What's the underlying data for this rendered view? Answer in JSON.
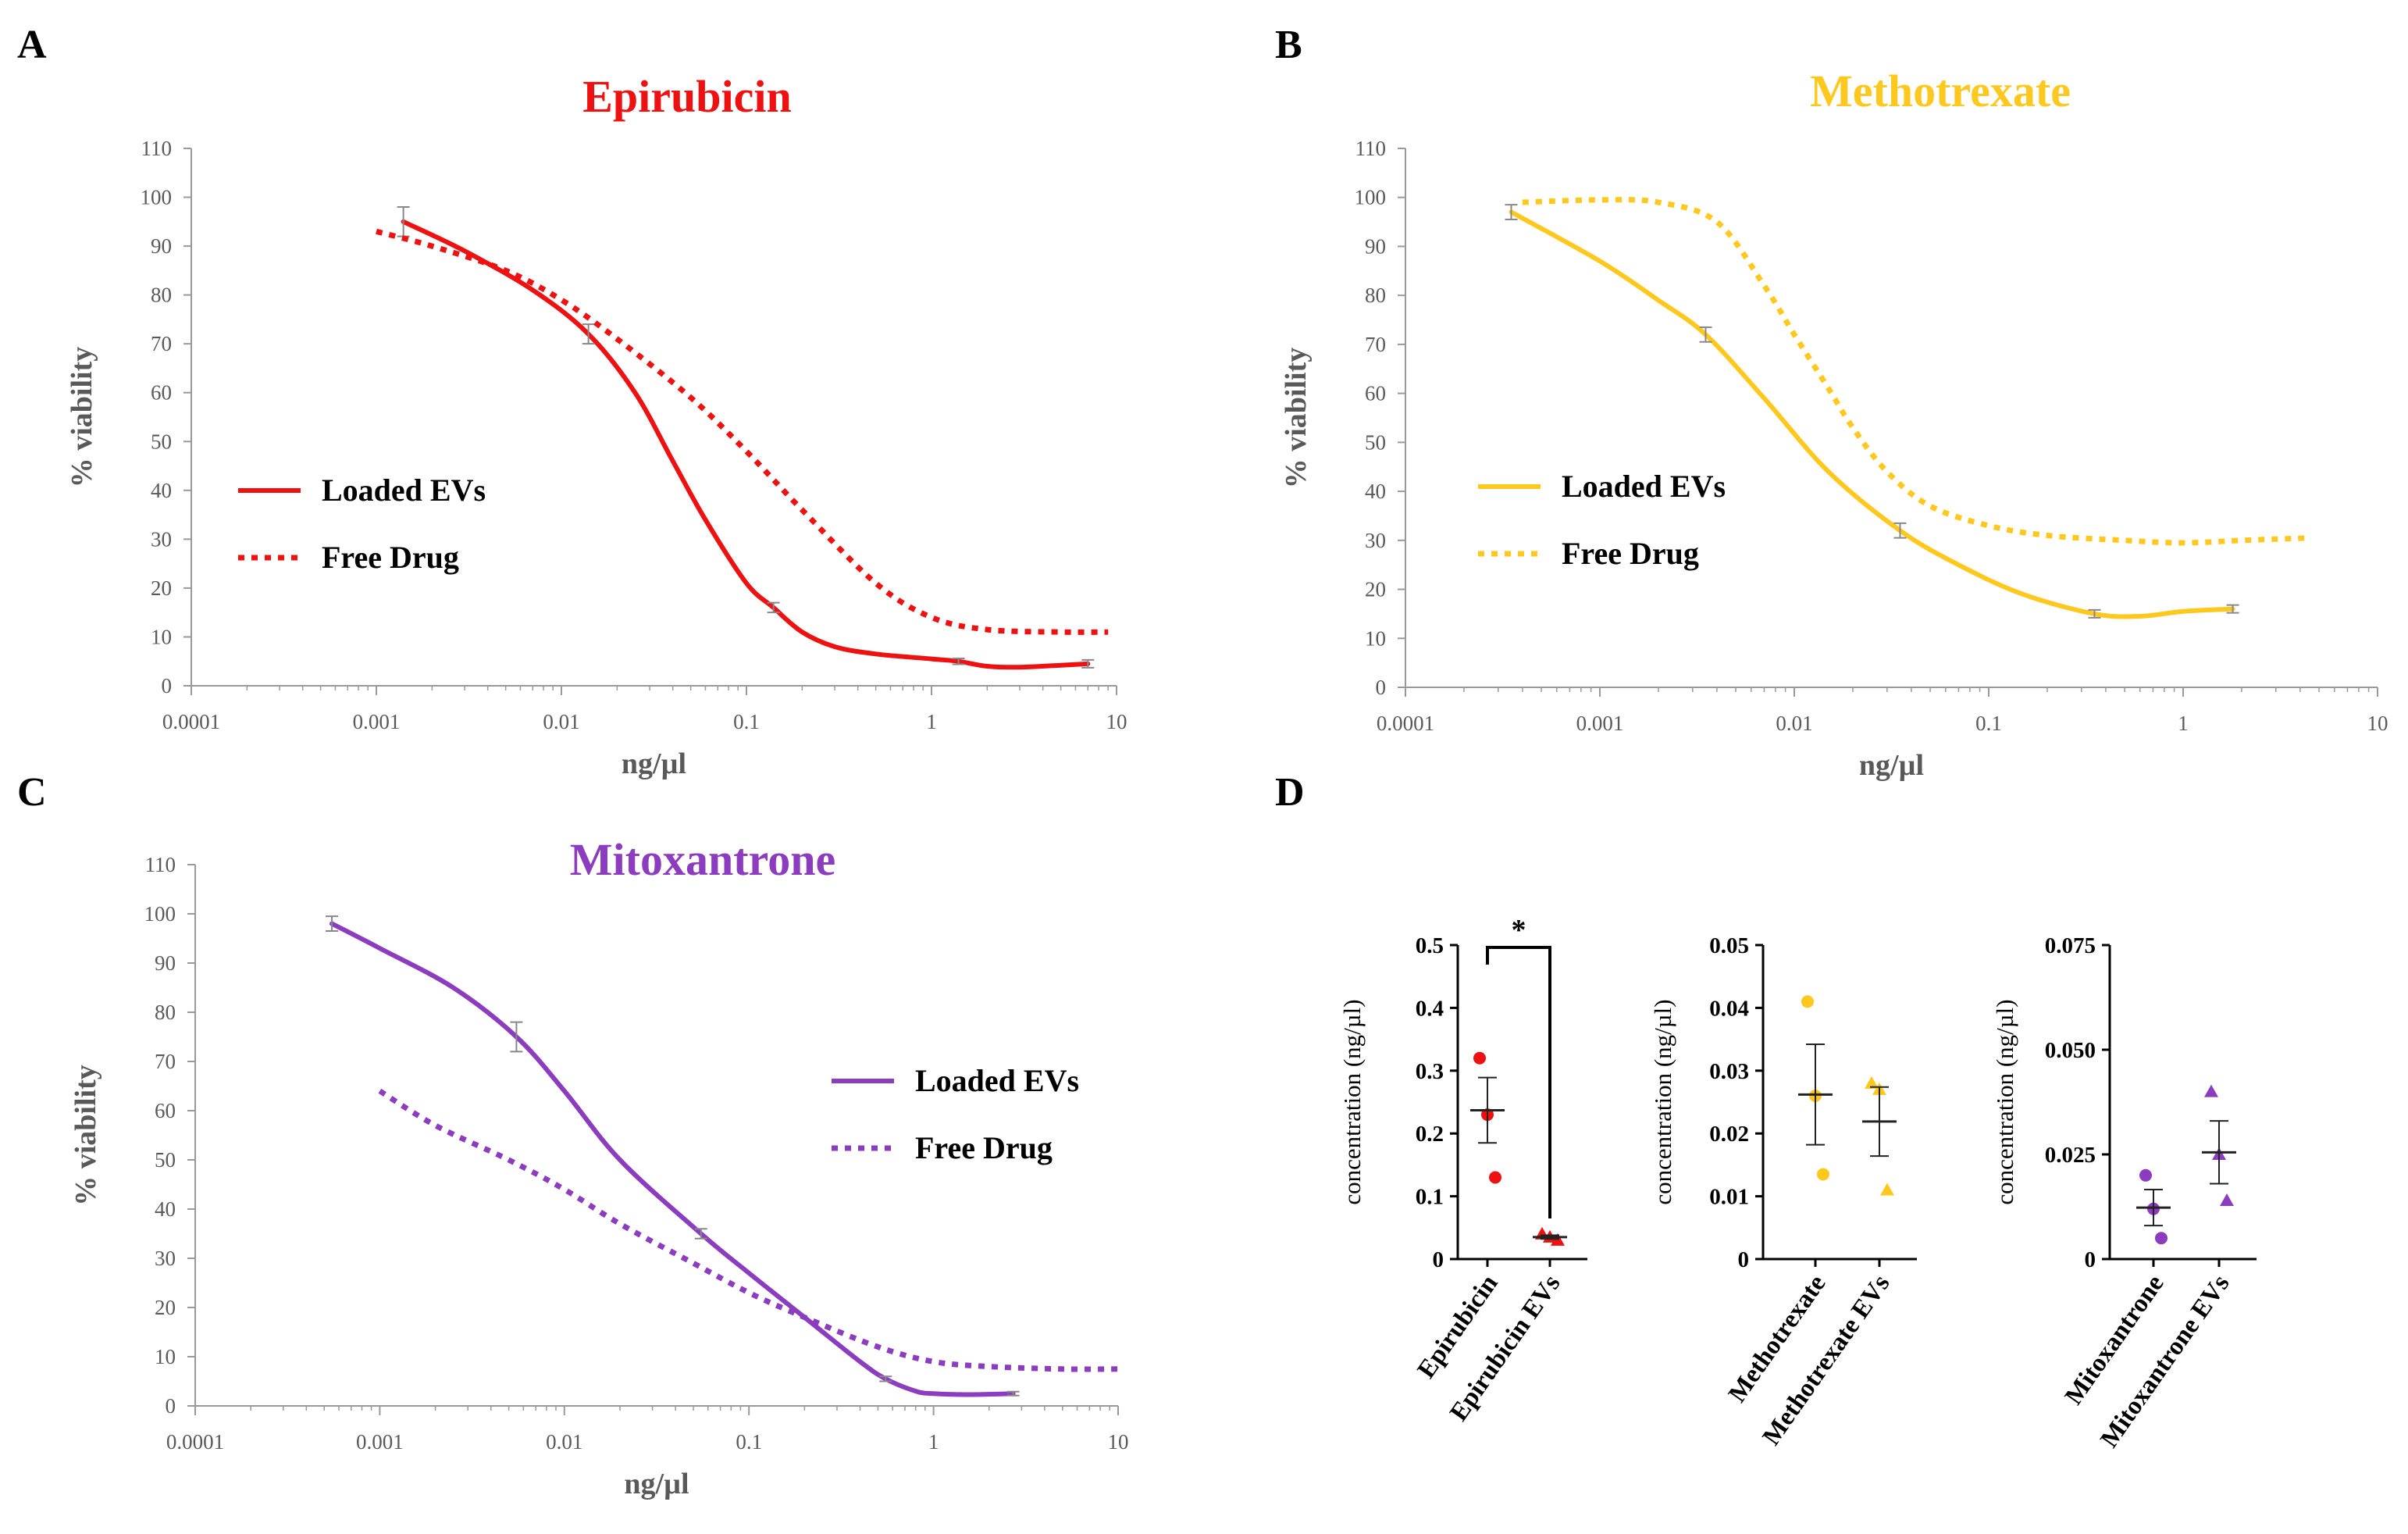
{
  "panels": {
    "A": {
      "letter": "A"
    },
    "B": {
      "letter": "B"
    },
    "C": {
      "letter": "C"
    },
    "D": {
      "letter": "D"
    }
  },
  "colors": {
    "epirubicin": "#ee1111",
    "methotrexate": "#ffc81e",
    "mitoxantrone": "#8c3cbe",
    "errorbar": "#888888",
    "axis": "#999999",
    "scatter_axis": "#000000"
  },
  "chart_data": [
    {
      "id": "A",
      "type": "line",
      "title": "Epirubicin",
      "xlabel": "ng/µl",
      "ylabel": "% viability",
      "xscale": "log",
      "xlim": [
        0.0001,
        10
      ],
      "ylim": [
        0,
        110
      ],
      "xticks": [
        "0.0001",
        "0.001",
        "0.01",
        "0.1",
        "1",
        "10"
      ],
      "yticks": [
        "0",
        "10",
        "20",
        "30",
        "40",
        "50",
        "60",
        "70",
        "80",
        "90",
        "100",
        "110"
      ],
      "color": "#ee1111",
      "legend_position": "center-left",
      "series": [
        {
          "name": "Loaded EVs",
          "style": "solid",
          "x": [
            0.0014,
            0.014,
            0.14,
            1.4,
            7
          ],
          "y": [
            95,
            72,
            16,
            5,
            4.5
          ],
          "err": [
            3,
            2,
            1,
            0.6,
            0.8
          ],
          "curve_x": [
            0.0014,
            0.003,
            0.007,
            0.014,
            0.025,
            0.04,
            0.06,
            0.1,
            0.14,
            0.2,
            0.3,
            0.5,
            1,
            1.4,
            2,
            3,
            5,
            7
          ],
          "curve_y": [
            95,
            89,
            81,
            72,
            60,
            46,
            34,
            21,
            16,
            11,
            8,
            6.5,
            5.5,
            5,
            4,
            3.8,
            4.2,
            4.5
          ]
        },
        {
          "name": "Free Drug",
          "style": "dotted",
          "x": [
            0.001,
            0.002,
            0.005,
            0.01,
            0.02,
            0.05,
            0.1,
            0.2,
            0.5,
            1,
            2,
            5,
            9
          ],
          "y": [
            93,
            90,
            85,
            79,
            71,
            59,
            48,
            36,
            21,
            14,
            11.5,
            11,
            11
          ]
        }
      ]
    },
    {
      "id": "B",
      "type": "line",
      "title": "Methotrexate",
      "xlabel": "ng/µl",
      "ylabel": "% viability",
      "xscale": "log",
      "xlim": [
        0.0001,
        10
      ],
      "ylim": [
        0,
        110
      ],
      "xticks": [
        "0.0001",
        "0.001",
        "0.01",
        "0.1",
        "1",
        "10"
      ],
      "yticks": [
        "0",
        "10",
        "20",
        "30",
        "40",
        "50",
        "60",
        "70",
        "80",
        "90",
        "100",
        "110"
      ],
      "color": "#ffc81e",
      "legend_position": "center-left",
      "series": [
        {
          "name": "Loaded EVs",
          "style": "solid",
          "x": [
            0.00035,
            0.0035,
            0.035,
            0.35,
            1.8
          ],
          "y": [
            97,
            72,
            32,
            15,
            16
          ],
          "err": [
            1.5,
            1.5,
            1.5,
            0.8,
            0.8
          ],
          "curve_x": [
            0.00035,
            0.001,
            0.002,
            0.0035,
            0.007,
            0.015,
            0.035,
            0.07,
            0.15,
            0.35,
            0.6,
            1,
            1.8
          ],
          "curve_y": [
            97,
            87,
            79,
            72,
            59,
            44,
            32,
            25,
            19,
            15,
            14.5,
            15.5,
            16
          ]
        },
        {
          "name": "Free Drug",
          "style": "dotted",
          "x": [
            0.0004,
            0.001,
            0.002,
            0.004,
            0.007,
            0.01,
            0.015,
            0.02,
            0.03,
            0.05,
            0.1,
            0.2,
            0.5,
            1,
            2,
            4.5
          ],
          "y": [
            99,
            99.5,
            99,
            95,
            82,
            72,
            61,
            53,
            44,
            37,
            33,
            31,
            30,
            29.5,
            30,
            30.5
          ]
        }
      ]
    },
    {
      "id": "C",
      "type": "line",
      "title": "Mitoxantrone",
      "xlabel": "ng/µl",
      "ylabel": "% viability",
      "xscale": "log",
      "xlim": [
        0.0001,
        10
      ],
      "ylim": [
        0,
        110
      ],
      "xticks": [
        "0.0001",
        "0.001",
        "0.01",
        "0.1",
        "1",
        "10"
      ],
      "yticks": [
        "0",
        "10",
        "20",
        "30",
        "40",
        "50",
        "60",
        "70",
        "80",
        "90",
        "100",
        "110"
      ],
      "color": "#8c3cbe",
      "legend_position": "center-right",
      "series": [
        {
          "name": "Loaded EVs",
          "style": "solid",
          "x": [
            0.00055,
            0.0055,
            0.055,
            0.55,
            2.7
          ],
          "y": [
            98,
            75,
            35,
            5.5,
            2.5
          ],
          "err": [
            1.5,
            3,
            1,
            0.5,
            0.4
          ],
          "curve_x": [
            0.00055,
            0.001,
            0.0025,
            0.0055,
            0.01,
            0.02,
            0.055,
            0.1,
            0.2,
            0.4,
            0.55,
            0.8,
            1,
            1.5,
            2.7
          ],
          "curve_y": [
            98,
            93,
            85,
            75,
            64,
            50,
            35,
            27,
            18,
            9,
            5.5,
            3,
            2.5,
            2.3,
            2.5
          ]
        },
        {
          "name": "Free Drug",
          "style": "dotted",
          "x": [
            0.001,
            0.002,
            0.005,
            0.01,
            0.02,
            0.05,
            0.1,
            0.2,
            0.5,
            1,
            2,
            5,
            10
          ],
          "y": [
            64,
            57,
            50,
            44,
            37,
            29,
            23,
            18,
            12,
            9,
            8,
            7.5,
            7.5
          ]
        }
      ]
    },
    {
      "id": "D1",
      "type": "scatter",
      "ylabel": "concentration (ng/µl)",
      "ylim": [
        0,
        0.5
      ],
      "yticks": [
        "0",
        "0.1",
        "0.2",
        "0.3",
        "0.4",
        "0.5"
      ],
      "categories": [
        "Epirubicin",
        "Epirubicin  EVs"
      ],
      "markers": [
        "circle",
        "triangle"
      ],
      "color": "#ee1111",
      "points": [
        [
          0.32,
          0.23,
          0.13
        ],
        [
          0.04,
          0.035,
          0.03
        ]
      ],
      "mean": [
        0.237,
        0.035
      ],
      "sem": [
        0.052,
        0.003
      ],
      "significance": "*"
    },
    {
      "id": "D2",
      "type": "scatter",
      "ylabel": "concentration (ng/µl)",
      "ylim": [
        0,
        0.05
      ],
      "yticks": [
        "0",
        "0.01",
        "0.02",
        "0.03",
        "0.04",
        "0.05"
      ],
      "categories": [
        "Methotrexate",
        "Methotrexate EVs"
      ],
      "markers": [
        "circle",
        "triangle"
      ],
      "color": "#ffc81e",
      "points": [
        [
          0.041,
          0.026,
          0.0135
        ],
        [
          0.028,
          0.027,
          0.011
        ]
      ],
      "mean": [
        0.0262,
        0.0219
      ],
      "sem": [
        0.008,
        0.0055
      ]
    },
    {
      "id": "D3",
      "type": "scatter",
      "ylabel": "concentration (ng/µl)",
      "ylim": [
        0,
        0.075
      ],
      "yticks": [
        "0",
        "0.025",
        "0.050",
        "0.075"
      ],
      "categories": [
        "Mitoxantrone",
        "Mitoxantrone EVs"
      ],
      "markers": [
        "circle",
        "triangle"
      ],
      "color": "#8c3cbe",
      "points": [
        [
          0.02,
          0.012,
          0.005
        ],
        [
          0.04,
          0.025,
          0.014
        ]
      ],
      "mean": [
        0.0123,
        0.0255
      ],
      "sem": [
        0.0043,
        0.0075
      ]
    }
  ]
}
